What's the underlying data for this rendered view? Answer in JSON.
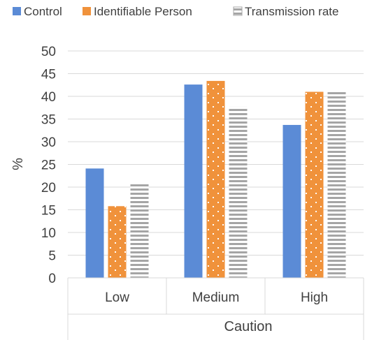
{
  "chart_data": {
    "type": "bar",
    "title": "",
    "xlabel": "Caution",
    "ylabel": "%",
    "categories": [
      "Low",
      "Medium",
      "High"
    ],
    "ylim": [
      0,
      50
    ],
    "yticks": [
      0,
      5,
      10,
      15,
      20,
      25,
      30,
      35,
      40,
      45,
      50
    ],
    "grid": true,
    "legend_position": "top",
    "series": [
      {
        "name": "Control",
        "values": [
          24.1,
          42.6,
          33.7
        ],
        "color": "#5b8bd6",
        "pattern": "solid"
      },
      {
        "name": "Identifiable Person",
        "values": [
          15.8,
          43.4,
          41.0
        ],
        "color": "#f0923b",
        "pattern": "dots"
      },
      {
        "name": "Transmission rate",
        "values": [
          21.0,
          37.7,
          41.3
        ],
        "color": "#a5a5a5",
        "pattern": "horizontal-stripes"
      }
    ]
  }
}
